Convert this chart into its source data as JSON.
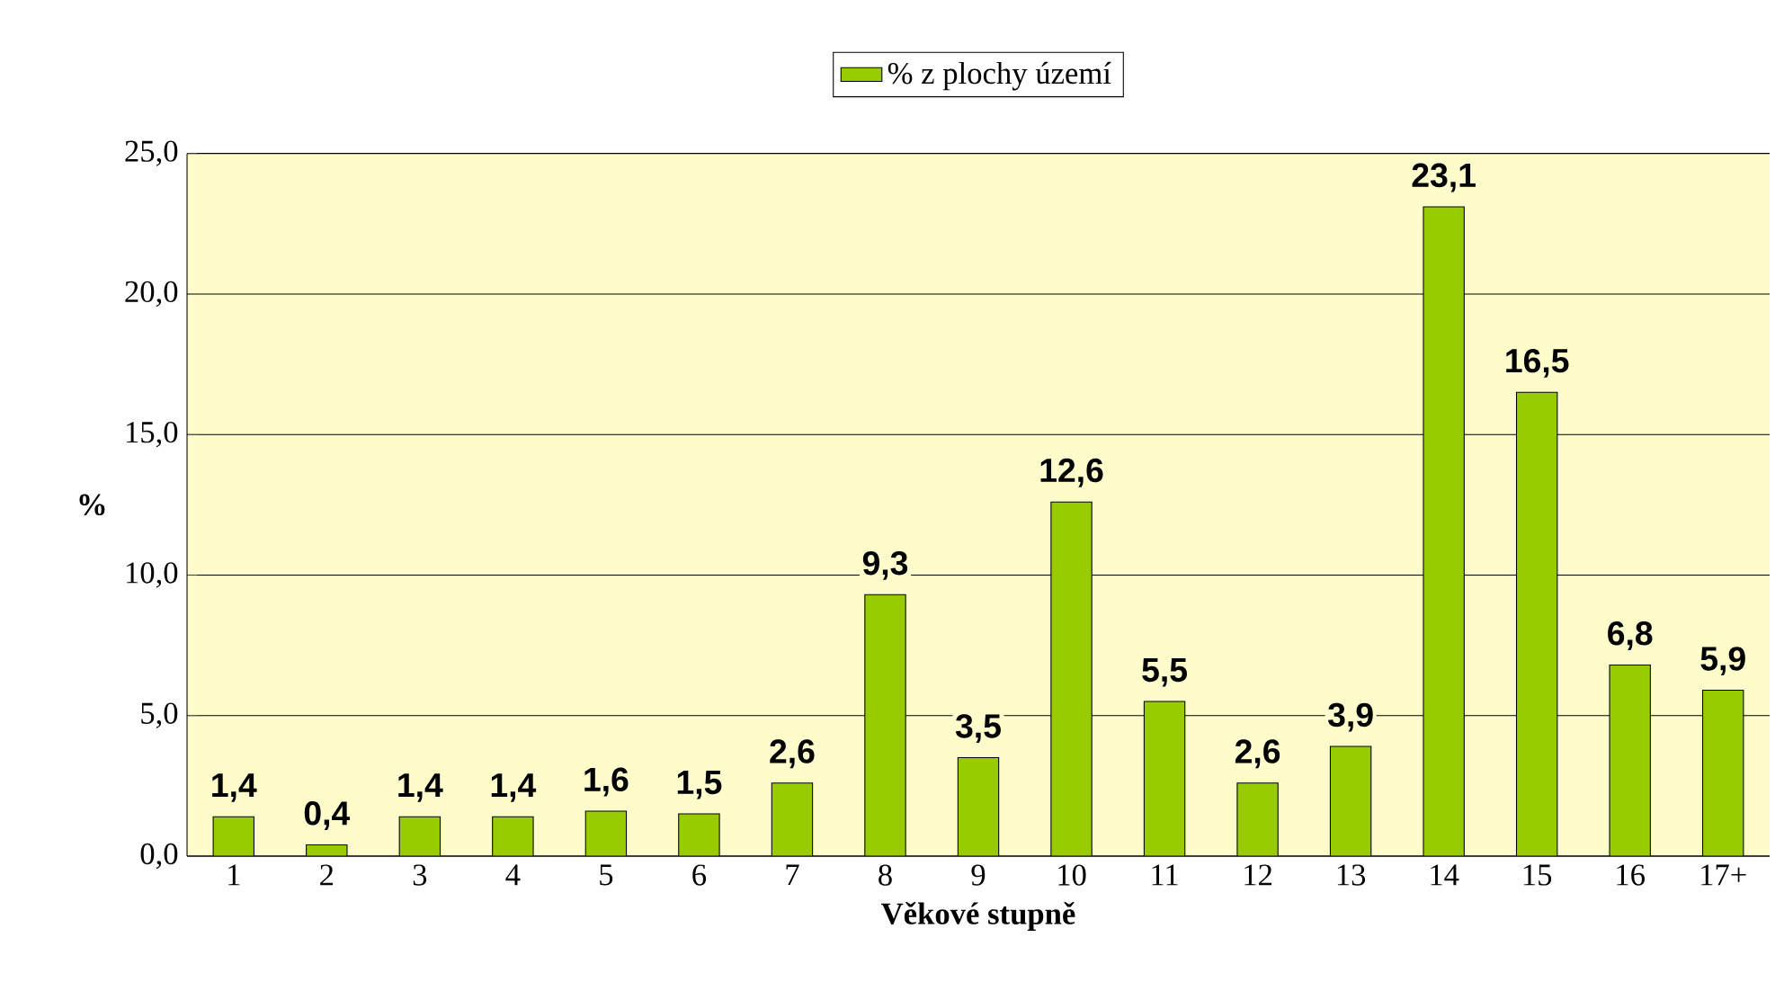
{
  "chart_data": {
    "type": "bar",
    "xlabel": "Věkové stupně",
    "ylabel": "%",
    "categories": [
      "1",
      "2",
      "3",
      "4",
      "5",
      "6",
      "7",
      "8",
      "9",
      "10",
      "11",
      "12",
      "13",
      "14",
      "15",
      "16",
      "17+"
    ],
    "series": [
      {
        "name": "% z plochy území",
        "color": "#99cc00",
        "values": [
          1.4,
          0.4,
          1.4,
          1.4,
          1.6,
          1.5,
          2.6,
          9.3,
          3.5,
          12.6,
          5.5,
          2.6,
          3.9,
          23.1,
          16.5,
          6.8,
          5.9
        ],
        "value_labels": [
          "1,4",
          "0,4",
          "1,4",
          "1,4",
          "1,6",
          "1,5",
          "2,6",
          "9,3",
          "3,5",
          "12,6",
          "5,5",
          "2,6",
          "3,9",
          "23,1",
          "16,5",
          "6,8",
          "5,9"
        ]
      }
    ],
    "ylim": [
      0,
      25
    ],
    "yticks": [
      {
        "value": 0,
        "label": "0,0"
      },
      {
        "value": 5,
        "label": "5,0"
      },
      {
        "value": 10,
        "label": "10,0"
      },
      {
        "value": 15,
        "label": "15,0"
      },
      {
        "value": 20,
        "label": "20,0"
      },
      {
        "value": 25,
        "label": "25,0"
      }
    ],
    "grid": "y",
    "legend": "top"
  }
}
